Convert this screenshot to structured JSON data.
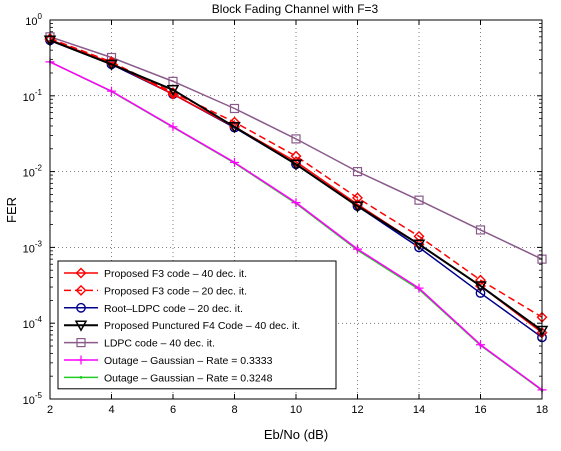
{
  "chart_data": {
    "type": "line",
    "title": "Block Fading Channel with F=3",
    "xlabel": "Eb/No (dB)",
    "ylabel": "FER",
    "xlim": [
      2,
      18
    ],
    "ylim": [
      1e-05,
      1
    ],
    "yscale": "log",
    "grid": true,
    "legend_position": "bottom-left",
    "x_ticks": [
      "2",
      "4",
      "6",
      "8",
      "10",
      "12",
      "14",
      "16",
      "18"
    ],
    "y_ticks": [
      {
        "base": "10",
        "exp": "0"
      },
      {
        "base": "10",
        "exp": "-1"
      },
      {
        "base": "10",
        "exp": "-2"
      },
      {
        "base": "10",
        "exp": "-3"
      },
      {
        "base": "10",
        "exp": "-4"
      },
      {
        "base": "10",
        "exp": "-5"
      }
    ],
    "x": [
      2,
      4,
      6,
      8,
      10,
      12,
      14,
      16,
      18
    ],
    "series": [
      {
        "name": "Proposed F3 code – 40 dec. it.",
        "color": "#ff0000",
        "dash": "solid",
        "marker": "diamond",
        "values": [
          0.55,
          0.27,
          0.105,
          0.039,
          0.0135,
          0.0037,
          0.0011,
          0.00031,
          7.5e-05
        ]
      },
      {
        "name": "Proposed F3 code – 20 dec. it.",
        "color": "#ff0000",
        "dash": "dashed",
        "marker": "diamond",
        "values": [
          0.57,
          0.28,
          0.11,
          0.045,
          0.016,
          0.0045,
          0.0014,
          0.00037,
          0.00012
        ]
      },
      {
        "name": "Root–LDPC code – 20 dec. it.",
        "color": "#00008b",
        "dash": "solid",
        "marker": "circle",
        "values": [
          0.54,
          0.26,
          0.105,
          0.038,
          0.0125,
          0.0035,
          0.001,
          0.00025,
          6.5e-05
        ]
      },
      {
        "name": "Proposed Punctured F4 Code – 40 dec. it.",
        "color": "#000000",
        "dash": "solid",
        "marker": "triangle-down",
        "values": [
          0.54,
          0.26,
          0.12,
          0.039,
          0.0125,
          0.0035,
          0.0011,
          0.00031,
          8e-05
        ]
      },
      {
        "name": "LDPC code – 40 dec. it.",
        "color": "#8a5a8a",
        "dash": "solid",
        "marker": "square",
        "values": [
          0.6,
          0.32,
          0.155,
          0.068,
          0.027,
          0.01,
          0.0042,
          0.0017,
          0.0007
        ]
      },
      {
        "name": "Outage – Gaussian – Rate = 0.3333",
        "color": "#ff00ff",
        "dash": "solid",
        "marker": "plus",
        "values": [
          0.28,
          0.115,
          0.039,
          0.0132,
          0.0039,
          0.00095,
          0.00029,
          5.2e-05,
          1.32e-05
        ]
      },
      {
        "name": "Outage – Gaussian – Rate = 0.3248",
        "color": "#22cc22",
        "dash": "solid",
        "marker": "dot",
        "values": [
          0.28,
          0.114,
          0.0385,
          0.013,
          0.0038,
          0.00092,
          0.00028,
          5.1e-05,
          1.3e-05
        ]
      }
    ]
  }
}
